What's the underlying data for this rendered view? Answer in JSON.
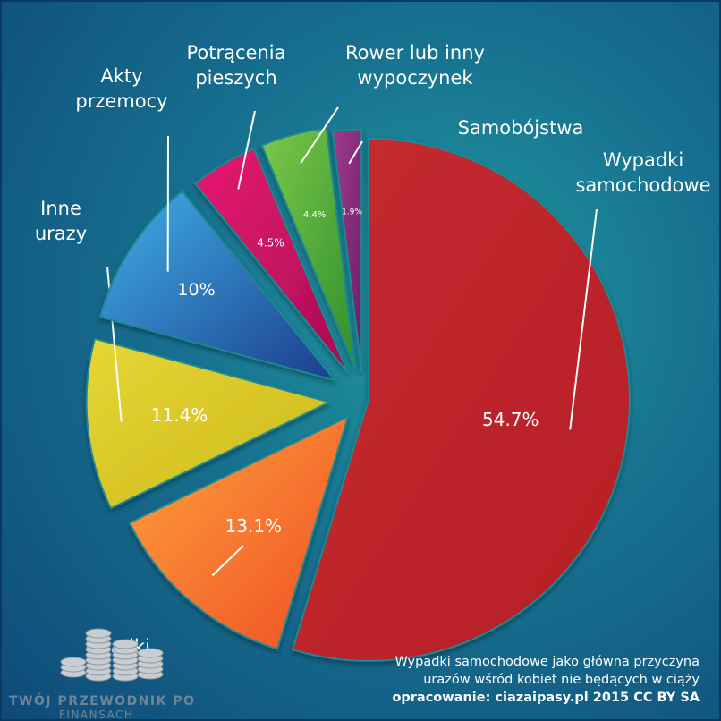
{
  "chart_data": {
    "type": "pie",
    "title": "",
    "caption_lines": [
      "Wypadki samochodowe jako główna przyczyna",
      "urazów wśród kobiet nie będących w ciąży"
    ],
    "credit": "opracowanie: ciazaipasy.pl 2015 CC BY SA",
    "slices": [
      {
        "label_lines": [
          "Wypadki",
          "samochodowe"
        ],
        "value": 54.7,
        "value_label": "54.7%",
        "color": "#c1272d"
      },
      {
        "label_lines": [
          "Upadki"
        ],
        "value": 13.1,
        "value_label": "13.1%",
        "color": "#f26a2a"
      },
      {
        "label_lines": [
          "Inne",
          "urazy"
        ],
        "value": 11.4,
        "value_label": "11.4%",
        "color": "#d9c621"
      },
      {
        "label_lines": [
          "Akty",
          "przemocy"
        ],
        "value": 10,
        "value_label": "10%",
        "color": "#2f8fd8"
      },
      {
        "label_lines": [
          "Potrącenia",
          "pieszych"
        ],
        "value": 4.5,
        "value_label": "4.5%",
        "color": "#d41468"
      },
      {
        "label_lines": [
          "Rower lub inny",
          "wypoczynek"
        ],
        "value": 4.4,
        "value_label": "4.4%",
        "color": "#5fb83a"
      },
      {
        "label_lines": [
          "Samobójstwa"
        ],
        "value": 1.9,
        "value_label": "1.9%",
        "color": "#8b2a7a"
      }
    ]
  },
  "watermark": {
    "line1": "TWÓJ PRZEWODNIK PO",
    "line2": "FINANSACH",
    "icon": "coin-stack-icon"
  },
  "colors": {
    "background_center": "#1f9aa0",
    "background_edge": "#0f4a79",
    "text": "#ffffff"
  }
}
